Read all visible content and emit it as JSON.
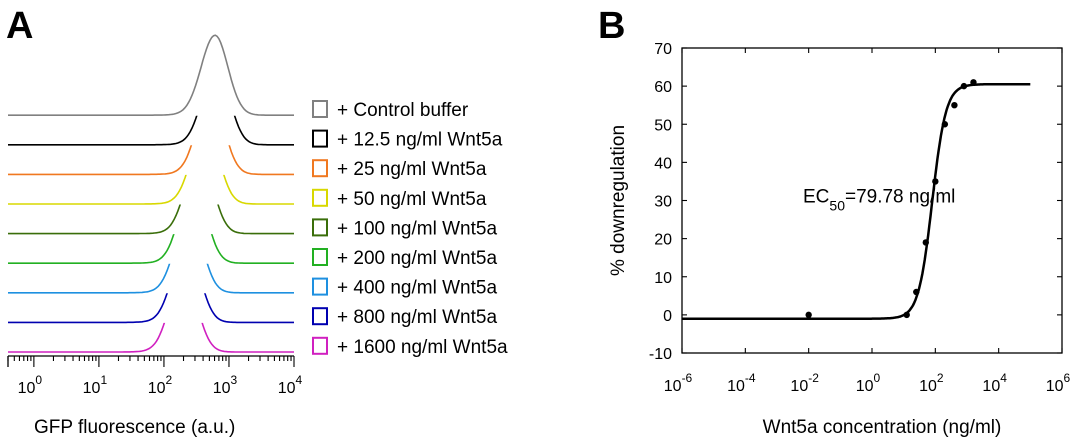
{
  "panels": {
    "a_letter": "A",
    "b_letter": "B"
  },
  "chart_data": [
    {
      "type": "area",
      "panel": "A",
      "chart": "stacked flow-cytometry histograms",
      "xlabel": "GFP fluorescence (a.u.)",
      "xscale": "log",
      "xlim": [
        0.4,
        10000
      ],
      "x_ticks": [
        1,
        10,
        100,
        1000,
        10000
      ],
      "x_tick_labels": [
        {
          "base": "10",
          "exp": "0"
        },
        {
          "base": "10",
          "exp": "1"
        },
        {
          "base": "10",
          "exp": "2"
        },
        {
          "base": "10",
          "exp": "3"
        },
        {
          "base": "10",
          "exp": "4"
        }
      ],
      "legend_position": "right",
      "series": [
        {
          "name": "+ Control buffer",
          "color": "#808080",
          "peak_x": 600
        },
        {
          "name": "+ 12.5 ng/ml Wnt5a",
          "color": "#000000",
          "peak_x": 630
        },
        {
          "name": "+ 25 ng/ml Wnt5a",
          "color": "#f07820",
          "peak_x": 520
        },
        {
          "name": "+ 50 ng/ml Wnt5a",
          "color": "#d8d800",
          "peak_x": 430
        },
        {
          "name": "+ 100 ng/ml Wnt5a",
          "color": "#3a6e0a",
          "peak_x": 350
        },
        {
          "name": "+ 200 ng/ml Wnt5a",
          "color": "#22b022",
          "peak_x": 280
        },
        {
          "name": "+ 400 ng/ml Wnt5a",
          "color": "#1e90e0",
          "peak_x": 240
        },
        {
          "name": "+ 800 ng/ml Wnt5a",
          "color": "#0000b0",
          "peak_x": 220
        },
        {
          "name": "+ 1600 ng/ml Wnt5a",
          "color": "#d020c0",
          "peak_x": 200
        }
      ]
    },
    {
      "type": "scatter",
      "panel": "B",
      "xlabel": "Wnt5a concentration (ng/ml)",
      "ylabel": "% downregulation",
      "xscale": "log",
      "xlim": [
        1e-06,
        1000000
      ],
      "ylim": [
        -10,
        70
      ],
      "x_ticks": [
        1e-06,
        0.0001,
        0.01,
        1,
        100,
        10000,
        1000000
      ],
      "x_tick_labels": [
        {
          "base": "10",
          "exp": "-6"
        },
        {
          "base": "10",
          "exp": "-4"
        },
        {
          "base": "10",
          "exp": "-2"
        },
        {
          "base": "10",
          "exp": "0"
        },
        {
          "base": "10",
          "exp": "2"
        },
        {
          "base": "10",
          "exp": "4"
        },
        {
          "base": "10",
          "exp": "6"
        }
      ],
      "y_ticks": [
        -10,
        0,
        10,
        20,
        30,
        40,
        50,
        60,
        70
      ],
      "points": [
        {
          "x": 0.01,
          "y": 0
        },
        {
          "x": 12.5,
          "y": 0
        },
        {
          "x": 25,
          "y": 6
        },
        {
          "x": 50,
          "y": 19
        },
        {
          "x": 100,
          "y": 35
        },
        {
          "x": 200,
          "y": 50
        },
        {
          "x": 400,
          "y": 55
        },
        {
          "x": 800,
          "y": 60
        },
        {
          "x": 1600,
          "y": 61
        }
      ],
      "fit": {
        "model": "sigmoid",
        "bottom": -1,
        "top": 60.5,
        "ec50": 79.78,
        "hill": 2,
        "x_range": [
          1e-06,
          100000
        ]
      },
      "annotation": {
        "prefix": "EC",
        "subscript": "50",
        "suffix": "=79.78 ng/ml",
        "x": 1,
        "y": 30
      }
    }
  ]
}
